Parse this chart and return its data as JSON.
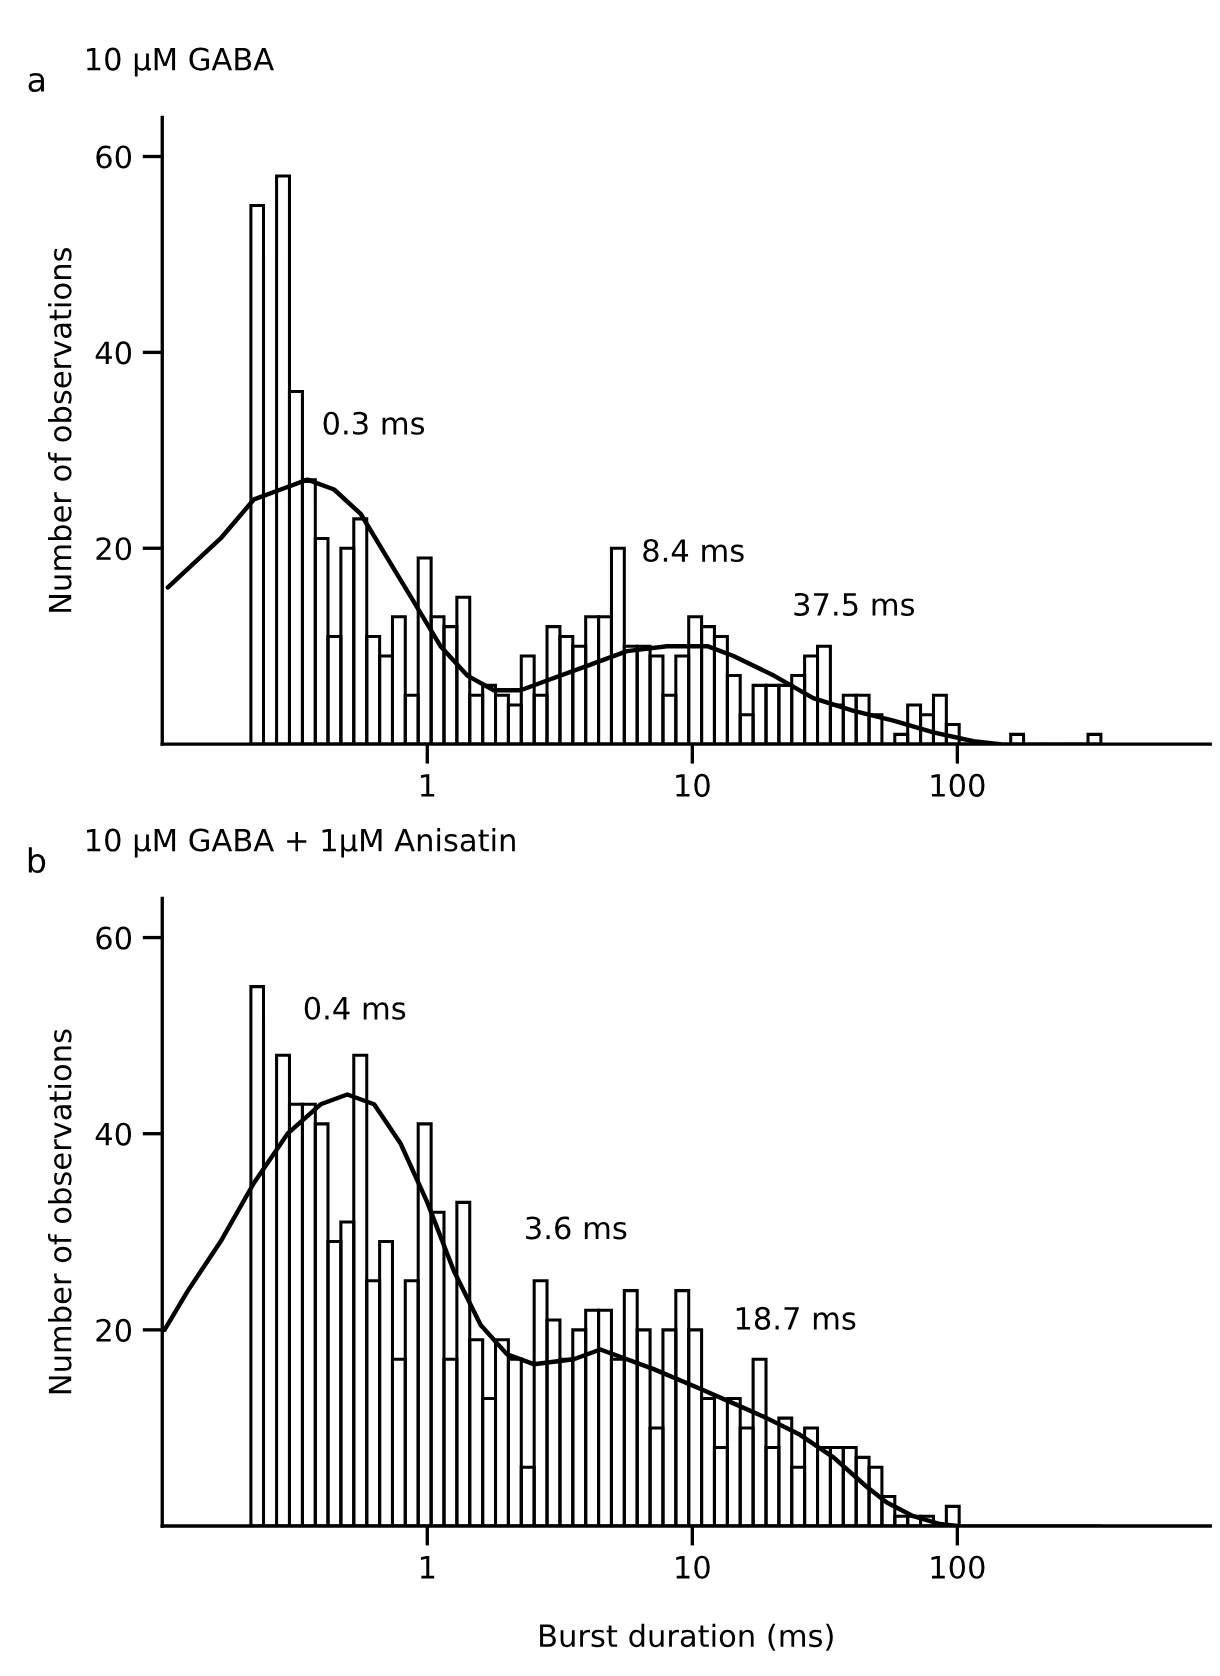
{
  "chart_data": [
    {
      "type": "histogram",
      "title": "10 μM GABA",
      "ylabel": "Number of observations",
      "annotations": [
        "a",
        "0.3 ms",
        "8.4 ms",
        "37.5 ms"
      ],
      "bins": [
        0.216,
        0.241,
        0.27,
        0.302,
        0.338,
        0.378,
        0.422,
        0.472,
        0.528,
        0.591,
        0.661,
        0.739,
        0.826,
        0.924,
        1.034,
        1.156,
        1.293,
        1.446,
        1.618,
        1.809,
        2.023,
        2.263,
        2.531,
        2.83,
        3.166,
        3.54,
        3.96,
        4.429,
        4.953,
        5.539,
        6.194,
        6.928,
        7.748,
        8.666,
        9.692,
        10.84,
        12.12,
        13.56,
        15.16,
        16.96,
        18.97,
        21.21,
        23.72,
        26.53,
        29.68,
        33.19,
        37.12,
        41.52,
        46.44,
        51.93,
        58.08,
        64.96,
        72.65,
        81.26,
        90.88,
        101.6,
        113.7,
        127.1,
        142.2,
        159.0,
        177.8,
        198.9,
        222.4,
        248.8,
        278.2,
        311.2,
        348.0
      ],
      "values": [
        55,
        0,
        58,
        36,
        27,
        21,
        11,
        20,
        23,
        11,
        9,
        13,
        5,
        19,
        13,
        12,
        15,
        5,
        6,
        5,
        4,
        9,
        5,
        12,
        11,
        10,
        13,
        13,
        20,
        10,
        10,
        9,
        5,
        9,
        13,
        12,
        11,
        7,
        3,
        6,
        6,
        6,
        7,
        9,
        10,
        4,
        5,
        5,
        3,
        0,
        1,
        4,
        3,
        5,
        2,
        0,
        0,
        0,
        0,
        1,
        0,
        0,
        0,
        0,
        0,
        1
      ],
      "color": "#000000",
      "series": [
        {
          "type": "line",
          "color": "#000000",
          "x": [
            0.105,
            0.166,
            0.222,
            0.28,
            0.353,
            0.445,
            0.561,
            0.707,
            0.891,
            1.122,
            1.416,
            1.782,
            2.25,
            2.83,
            4.01,
            5.67,
            8.03,
            11.4,
            14.3,
            20.3,
            28.6,
            40.6,
            57.4,
            81.2,
            115,
            145
          ],
          "values": [
            16,
            21,
            25,
            26,
            27,
            26,
            23.5,
            19,
            14.5,
            10,
            7,
            5.5,
            5.5,
            6.5,
            8,
            9.5,
            10,
            10,
            9,
            7,
            4.7,
            3.4,
            2.4,
            1.2,
            0.3,
            0
          ]
        }
      ],
      "xlim": [
        0.1,
        900
      ],
      "xticks": [
        1,
        10,
        100
      ],
      "ylim": [
        0,
        64
      ],
      "yticks": [
        20,
        40,
        60
      ],
      "log": "x"
    },
    {
      "type": "histogram",
      "title": "10 μM GABA + 1μM Anisatin",
      "xlabel": "Burst duration (ms)",
      "ylabel": "Number of observations",
      "annotations": [
        "b",
        "0.4 ms",
        "3.6 ms",
        "18.7 ms"
      ],
      "bins": [
        0.216,
        0.241,
        0.27,
        0.302,
        0.338,
        0.378,
        0.422,
        0.472,
        0.528,
        0.591,
        0.661,
        0.739,
        0.826,
        0.924,
        1.034,
        1.156,
        1.293,
        1.446,
        1.618,
        1.809,
        2.023,
        2.263,
        2.531,
        2.83,
        3.166,
        3.54,
        3.96,
        4.429,
        4.953,
        5.539,
        6.194,
        6.928,
        7.748,
        8.666,
        9.692,
        10.84,
        12.12,
        13.56,
        15.16,
        16.96,
        18.97,
        21.21,
        23.72,
        26.53,
        29.68,
        33.19,
        37.12,
        41.52,
        46.44,
        51.93,
        58.08,
        64.96,
        72.65,
        81.26,
        90.88,
        101.6,
        113.7,
        127.1,
        142.2,
        159.0,
        177.8,
        198.9,
        222.4,
        248.8,
        278.2,
        311.2,
        348.0
      ],
      "values": [
        55,
        0,
        48,
        43,
        43,
        41,
        29,
        31,
        48,
        25,
        29,
        17,
        25,
        41,
        32,
        17,
        33,
        19,
        13,
        19,
        17,
        6,
        25,
        21,
        17,
        20,
        22,
        22,
        17,
        24,
        20,
        10,
        20,
        24,
        20,
        13,
        8,
        13,
        10,
        17,
        8,
        11,
        6,
        10,
        8,
        8,
        8,
        7,
        6,
        3,
        1,
        1,
        1,
        0,
        2,
        0,
        0,
        0,
        0,
        0,
        0,
        0,
        0,
        0,
        0,
        0
      ],
      "color": "#000000",
      "series": [
        {
          "type": "line",
          "color": "#000000",
          "x": [
            0.102,
            0.125,
            0.166,
            0.222,
            0.297,
            0.396,
            0.499,
            0.63,
            0.793,
            1,
            1.26,
            1.59,
            2.0,
            2.52,
            3.57,
            4.5,
            7.15,
            10.7,
            14.3,
            19.1,
            25.5,
            34.1,
            45.5,
            54.2,
            68.2,
            86.1,
            100
          ],
          "values": [
            20,
            24,
            29,
            35,
            40,
            43,
            44,
            43,
            39,
            33,
            26,
            20.5,
            17.5,
            16.5,
            17,
            18,
            16,
            14,
            12.5,
            11,
            9.3,
            7,
            4,
            2.4,
            1,
            0.2,
            0
          ]
        }
      ],
      "xlim": [
        0.1,
        900
      ],
      "xticks": [
        1,
        10,
        100
      ],
      "ylim": [
        0,
        64
      ],
      "yticks": [
        20,
        40,
        60
      ],
      "log": "x"
    }
  ]
}
